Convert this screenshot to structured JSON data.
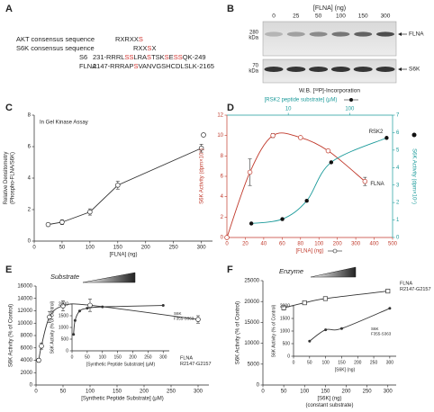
{
  "panel_labels": [
    "A",
    "B",
    "C",
    "D",
    "E",
    "F"
  ],
  "panel_a": {
    "lines": [
      {
        "label": "AKT consensus sequence",
        "segments": [
          {
            "text": "RXRXX"
          },
          {
            "text": "S",
            "color": "#d0312d"
          }
        ]
      },
      {
        "label": "S6K consensus sequence",
        "segments": [
          {
            "text": "RXX"
          },
          {
            "text": "S",
            "color": "#d0312d"
          },
          {
            "text": "X"
          }
        ]
      },
      {
        "label": "S6",
        "segments": [
          {
            "text": "231-RRRL"
          },
          {
            "text": "SS",
            "color": "#d0312d"
          },
          {
            "text": "LRA"
          },
          {
            "text": "S",
            "color": "#d0312d"
          },
          {
            "text": "TSK"
          },
          {
            "text": "S",
            "color": "#d0312d"
          },
          {
            "text": "E"
          },
          {
            "text": "SS",
            "color": "#d0312d"
          },
          {
            "text": "QK-249"
          }
        ]
      },
      {
        "label": "FLNA",
        "segments": [
          {
            "text": "2147-RRRAP"
          },
          {
            "text": "S",
            "color": "#d0312d"
          },
          {
            "text": "VANVGSHCDLSLK-2165"
          }
        ]
      }
    ]
  },
  "panel_b": {
    "title": "[FLNA] (ng)",
    "lanes": [
      0,
      25,
      50,
      100,
      150,
      300
    ],
    "markers": [
      {
        "value": "280",
        "unit": "kDa",
        "band": "FLNA"
      },
      {
        "value": "70",
        "unit": "kDa",
        "band": "S6K"
      }
    ],
    "caption": "W.B. [³²P]-Incorporation"
  },
  "chart_data": [
    {
      "type": "line",
      "title": "In Gel Kinase Assay",
      "xlabel": "[FLNA] (ng)",
      "ylabel": [
        "Relative Densitometry",
        "(Phospho-FLNA/S6K)"
      ],
      "xlim": [
        0,
        320
      ],
      "xticks": [
        0,
        50,
        100,
        150,
        200,
        250,
        300
      ],
      "ylim": [
        0,
        8
      ],
      "yticks": [
        0,
        2,
        4,
        6,
        8
      ],
      "series": [
        {
          "x": [
            25,
            50,
            100,
            150,
            300
          ],
          "values": [
            1.05,
            1.2,
            1.85,
            3.55,
            5.9
          ],
          "errors": [
            0.1,
            0.15,
            0.2,
            0.25,
            0.25
          ],
          "color": "#333333",
          "marker": "open",
          "line": "straight"
        }
      ]
    },
    {
      "type": "line",
      "xlabel": "[FLNA] (ng)",
      "x2label": "[RSK2 peptide substrate] (μM)",
      "ylabel": "S6K Activity (dpm×10⁴)",
      "y2label": "S6K Activity (dpm×10⁴)",
      "xlim": [
        0,
        500
      ],
      "xticks": [
        0,
        20,
        40,
        60,
        80,
        100,
        200,
        300,
        400,
        500
      ],
      "xscale": "segmented",
      "x2lim": [
        1,
        500
      ],
      "x2ticks": [
        10,
        100
      ],
      "x2scale": "log",
      "ylim": [
        0,
        12
      ],
      "yticks": [
        0,
        2,
        4,
        6,
        8,
        10,
        12
      ],
      "y2lim": [
        0,
        7
      ],
      "y2ticks": [
        0,
        1,
        2,
        3,
        4,
        5,
        6,
        7
      ],
      "xcolor": "#c0392b",
      "ycolor": "#c0392b",
      "x2color": "#1a9a9a",
      "y2color": "#1a9a9a",
      "series": [
        {
          "name": "FLNA",
          "x": [
            0,
            25,
            50,
            80,
            150,
            350
          ],
          "values": [
            0,
            6.4,
            10,
            9.8,
            8.5,
            5.5
          ],
          "errors": [
            0,
            1.3,
            0.2,
            0,
            0,
            0.4
          ],
          "color": "#c0392b",
          "marker": "open",
          "line": "smooth"
        },
        {
          "name": "RSK2",
          "axis": "y2",
          "xaxis": "x2",
          "x": [
            2.5,
            8,
            20,
            50,
            400
          ],
          "values": [
            0.8,
            1.05,
            2.1,
            4.3,
            5.7
          ],
          "color": "#1a9a9a",
          "marker_color": "#111111",
          "marker": "filled",
          "line": "smooth"
        }
      ]
    },
    {
      "type": "line",
      "header": "Substrate",
      "xlabel": "[Synthetic Peptide Substrate] (μM)",
      "ylabel": "S6K Activity (% of Control)",
      "annotation": [
        "FLNA",
        "R2147-G2157"
      ],
      "xlim": [
        0,
        320
      ],
      "xticks": [
        0,
        50,
        100,
        150,
        200,
        250,
        300
      ],
      "ylim": [
        0,
        16000
      ],
      "yticks": [
        0,
        2000,
        4000,
        6000,
        8000,
        10000,
        12000,
        14000,
        16000
      ],
      "series": [
        {
          "x": [
            5,
            10,
            25,
            50,
            100,
            300
          ],
          "values": [
            4000,
            6300,
            11000,
            12800,
            12900,
            10600
          ],
          "errors": [
            300,
            500,
            900,
            800,
            1000,
            600
          ],
          "color": "#333333",
          "marker": "open",
          "line": "smooth"
        }
      ]
    },
    {
      "type": "line",
      "xlabel": "[Synthetic Peptide Substrate] (μM)",
      "ylabel": "S6K Activity (% of Control)",
      "annotation": [
        "S6K",
        "F355-S363"
      ],
      "xlim": [
        0,
        320
      ],
      "xticks": [
        0,
        50,
        100,
        150,
        200,
        250,
        300
      ],
      "ylim": [
        0,
        2000
      ],
      "yticks": [
        0,
        500,
        1000,
        1500,
        2000
      ],
      "series": [
        {
          "x": [
            5,
            10,
            25,
            50,
            100,
            300
          ],
          "values": [
            700,
            1300,
            1700,
            1820,
            1880,
            1940
          ],
          "color": "#333333",
          "marker": "filled",
          "line": "smooth"
        }
      ]
    },
    {
      "type": "line",
      "header": "Enzyme",
      "xlabel": [
        "[S6K] (ng)",
        "(constant substrate)"
      ],
      "ylabel": "S6K Activity (% of Control)",
      "annotation": [
        "FLNA",
        "R2147-G2157"
      ],
      "xlim": [
        0,
        320
      ],
      "xticks": [
        0,
        50,
        100,
        150,
        200,
        250,
        300
      ],
      "ylim": [
        0,
        25000
      ],
      "yticks": [
        0,
        5000,
        10000,
        15000,
        20000,
        25000
      ],
      "series": [
        {
          "x": [
            50,
            100,
            150,
            300
          ],
          "values": [
            18500,
            19700,
            20700,
            22500
          ],
          "errors": [
            500,
            400,
            300,
            400
          ],
          "color": "#333333",
          "marker": "open-square",
          "line": "smooth"
        }
      ]
    },
    {
      "type": "line",
      "xlabel": "[S6K] (ng)",
      "ylabel": "S6K Activity (% of Control)",
      "annotation": [
        "S6K",
        "F355-S363"
      ],
      "xlim": [
        0,
        320
      ],
      "xticks": [
        0,
        50,
        100,
        150,
        200,
        250,
        300
      ],
      "ylim": [
        0,
        2000
      ],
      "yticks": [
        0,
        500,
        1000,
        1500,
        2000
      ],
      "series": [
        {
          "x": [
            50,
            100,
            150,
            300
          ],
          "values": [
            600,
            1050,
            1100,
            1900
          ],
          "color": "#333333",
          "marker": "filled",
          "line": "smooth"
        }
      ]
    }
  ]
}
